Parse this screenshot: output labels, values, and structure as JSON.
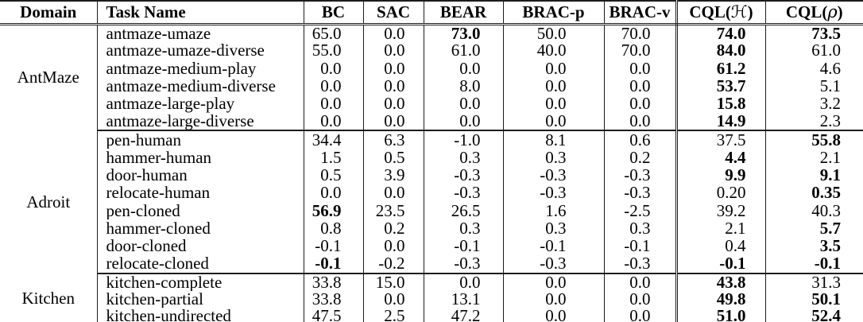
{
  "colors": {
    "text": "#000000",
    "line": "#1c1c1c",
    "background": "#ffffff"
  },
  "table": {
    "columns": [
      "Domain",
      "Task Name",
      "BC",
      "SAC",
      "BEAR",
      "BRAC-p",
      "BRAC-v",
      {
        "pre": "CQL(",
        "sym": "ℋ",
        "post": ")"
      },
      {
        "pre": "CQL(",
        "sym": "ρ",
        "post": ")"
      }
    ],
    "groups": [
      {
        "domain": "AntMaze",
        "rows": [
          {
            "task": "antmaze-umaze",
            "values": [
              "65.0",
              "0.0",
              "73.0",
              "50.0",
              "70.0",
              "74.0",
              "73.5"
            ],
            "bold": [
              2,
              5,
              6
            ]
          },
          {
            "task": "antmaze-umaze-diverse",
            "values": [
              "55.0",
              "0.0",
              "61.0",
              "40.0",
              "70.0",
              "84.0",
              "61.0"
            ],
            "bold": [
              5
            ]
          },
          {
            "task": "antmaze-medium-play",
            "values": [
              "0.0",
              "0.0",
              "0.0",
              "0.0",
              "0.0",
              "61.2",
              "4.6"
            ],
            "bold": [
              5
            ]
          },
          {
            "task": "antmaze-medium-diverse",
            "values": [
              "0.0",
              "0.0",
              "8.0",
              "0.0",
              "0.0",
              "53.7",
              "5.1"
            ],
            "bold": [
              5
            ]
          },
          {
            "task": "antmaze-large-play",
            "values": [
              "0.0",
              "0.0",
              "0.0",
              "0.0",
              "0.0",
              "15.8",
              "3.2"
            ],
            "bold": [
              5
            ]
          },
          {
            "task": "antmaze-large-diverse",
            "values": [
              "0.0",
              "0.0",
              "0.0",
              "0.0",
              "0.0",
              "14.9",
              "2.3"
            ],
            "bold": [
              5
            ]
          }
        ]
      },
      {
        "domain": "Adroit",
        "rows": [
          {
            "task": "pen-human",
            "values": [
              "34.4",
              "6.3",
              "-1.0",
              "8.1",
              "0.6",
              "37.5",
              "55.8"
            ],
            "bold": [
              6
            ]
          },
          {
            "task": "hammer-human",
            "values": [
              "1.5",
              "0.5",
              "0.3",
              "0.3",
              "0.2",
              "4.4",
              "2.1"
            ],
            "bold": [
              5
            ]
          },
          {
            "task": "door-human",
            "values": [
              "0.5",
              "3.9",
              "-0.3",
              "-0.3",
              "-0.3",
              "9.9",
              "9.1"
            ],
            "bold": [
              5,
              6
            ]
          },
          {
            "task": "relocate-human",
            "values": [
              "0.0",
              "0.0",
              "-0.3",
              "-0.3",
              "-0.3",
              "0.20",
              "0.35"
            ],
            "bold": [
              6
            ]
          },
          {
            "task": "pen-cloned",
            "values": [
              "56.9",
              "23.5",
              "26.5",
              "1.6",
              "-2.5",
              "39.2",
              "40.3"
            ],
            "bold": [
              0
            ]
          },
          {
            "task": "hammer-cloned",
            "values": [
              "0.8",
              "0.2",
              "0.3",
              "0.3",
              "0.3",
              "2.1",
              "5.7"
            ],
            "bold": [
              6
            ]
          },
          {
            "task": "door-cloned",
            "values": [
              "-0.1",
              "0.0",
              "-0.1",
              "-0.1",
              "-0.1",
              "0.4",
              "3.5"
            ],
            "bold": [
              6
            ]
          },
          {
            "task": "relocate-cloned",
            "values": [
              "-0.1",
              "-0.2",
              "-0.3",
              "-0.3",
              "-0.3",
              "-0.1",
              "-0.1"
            ],
            "bold": [
              0,
              5,
              6
            ]
          }
        ]
      },
      {
        "domain": "Kitchen",
        "rows": [
          {
            "task": "kitchen-complete",
            "values": [
              "33.8",
              "15.0",
              "0.0",
              "0.0",
              "0.0",
              "43.8",
              "31.3"
            ],
            "bold": [
              5
            ]
          },
          {
            "task": "kitchen-partial",
            "values": [
              "33.8",
              "0.0",
              "13.1",
              "0.0",
              "0.0",
              "49.8",
              "50.1"
            ],
            "bold": [
              5,
              6
            ]
          },
          {
            "task": "kitchen-undirected",
            "values": [
              "47.5",
              "2.5",
              "47.2",
              "0.0",
              "0.0",
              "51.0",
              "52.4"
            ],
            "bold": [
              5,
              6
            ]
          }
        ]
      }
    ]
  }
}
